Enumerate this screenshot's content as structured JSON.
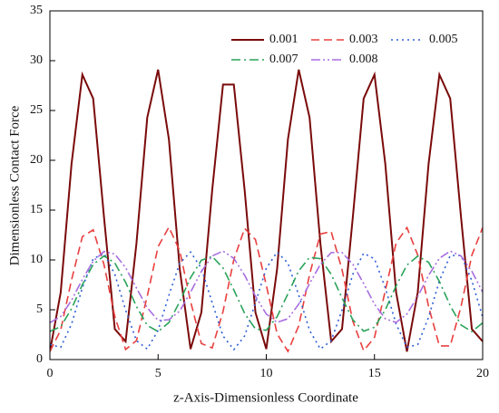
{
  "chart_data": {
    "type": "line",
    "xlabel": "z-Axis-Dimensionless Coordinate",
    "ylabel": "Dimensionless Contact Force",
    "x": [
      0,
      0.5,
      1,
      1.5,
      2,
      2.5,
      3,
      3.5,
      4,
      4.5,
      5,
      5.5,
      6,
      6.5,
      7,
      7.5,
      8,
      8.5,
      9,
      9.5,
      10,
      10.5,
      11,
      11.5,
      12,
      12.5,
      13,
      13.5,
      14,
      14.5,
      15,
      15.5,
      16,
      16.5,
      17,
      17.5,
      18,
      18.5,
      19,
      19.5,
      20
    ],
    "series": [
      {
        "name": "0.001",
        "color": "#7a0a0a",
        "style": "solid",
        "values": [
          0.8,
          6.75,
          19.64,
          28.6,
          26.2,
          14.3,
          3.06,
          1.82,
          11.66,
          24.3,
          29.1,
          22.1,
          9.1,
          1.06,
          4.72,
          17.0,
          27.6,
          27.6,
          17.0,
          4.72,
          1.06,
          9.1,
          22.1,
          29.1,
          24.3,
          11.66,
          1.82,
          3.06,
          14.3,
          26.2,
          28.6,
          19.64,
          6.75,
          0.8,
          6.75,
          19.64,
          28.6,
          26.2,
          14.3,
          3.06,
          1.82
        ]
      },
      {
        "name": "0.003",
        "color": "#e8403f",
        "style": "dashed",
        "values": [
          0.8,
          2.97,
          7.99,
          12.34,
          13.02,
          9.53,
          4.32,
          1.01,
          1.9,
          6.37,
          11.33,
          13.29,
          10.91,
          5.84,
          1.61,
          1.17,
          4.81,
          10.03,
          13.16,
          12.04,
          7.46,
          2.59,
          0.82,
          3.39,
          8.52,
          12.61,
          12.84,
          9.03,
          3.85,
          0.89,
          2.22,
          6.92,
          11.7,
          13.25,
          10.48,
          5.33,
          1.37,
          1.37,
          5.33,
          10.48,
          13.25
        ]
      },
      {
        "name": "0.005",
        "color": "#2f5fd6",
        "style": "dotted",
        "values": [
          1.51,
          1.23,
          3.56,
          7.2,
          10.11,
          10.67,
          8.56,
          4.96,
          1.89,
          1.06,
          2.93,
          6.46,
          9.68,
          10.79,
          9.16,
          5.71,
          2.37,
          1.0,
          2.37,
          5.71,
          9.16,
          10.79,
          9.68,
          6.46,
          2.93,
          1.06,
          1.89,
          4.96,
          8.56,
          10.67,
          10.11,
          7.2,
          3.56,
          1.23,
          1.51,
          4.24,
          7.9,
          10.44,
          10.45,
          7.92,
          4.26
        ]
      },
      {
        "name": "0.007",
        "color": "#2aa35a",
        "style": "dashdot",
        "values": [
          2.83,
          3.3,
          5.1,
          7.51,
          9.55,
          10.4,
          9.7,
          7.75,
          5.33,
          3.43,
          2.81,
          3.72,
          5.81,
          8.22,
          9.97,
          10.35,
          9.2,
          6.99,
          4.63,
          3.07,
          2.94,
          4.3,
          6.61,
          8.9,
          10.26,
          10.13,
          8.56,
          6.19,
          3.99,
          2.85,
          3.24,
          4.99,
          7.4,
          9.48,
          10.39,
          9.76,
          7.84,
          5.41,
          3.47,
          2.8,
          3.69
        ]
      },
      {
        "name": "0.008",
        "color": "#a86ee0",
        "style": "dashdotdot",
        "values": [
          3.7,
          4.32,
          5.95,
          8.04,
          9.88,
          10.84,
          10.59,
          9.22,
          7.19,
          5.2,
          3.93,
          4.0,
          4.87,
          6.77,
          8.84,
          10.4,
          10.89,
          10.16,
          8.46,
          6.36,
          4.57,
          3.73,
          4.1,
          5.56,
          7.61,
          9.56,
          10.74,
          10.75,
          9.57,
          7.63,
          5.56,
          4.1,
          3.73,
          4.57,
          6.34,
          8.45,
          10.16,
          10.89,
          10.4,
          8.86,
          6.77
        ]
      }
    ],
    "xlim": [
      0,
      20
    ],
    "xticks": [
      0,
      5,
      10,
      15,
      20
    ],
    "ylim": [
      0,
      35
    ],
    "yticks": [
      0,
      5,
      10,
      15,
      20,
      25,
      30,
      35
    ],
    "grid": false,
    "legend": "upper right"
  }
}
